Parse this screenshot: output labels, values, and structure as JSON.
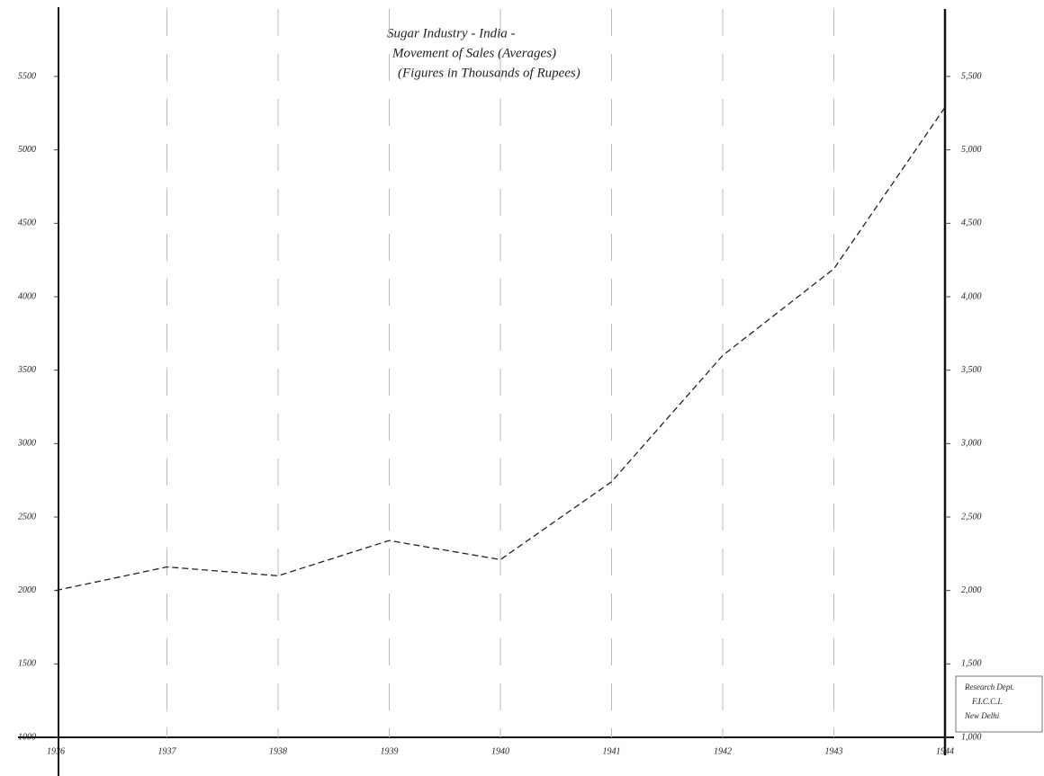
{
  "chart_data": {
    "type": "line",
    "title": [
      "Sugar Industry - India -",
      "Movement of Sales (Averages)",
      "(Figures in Thousands of Rupees)"
    ],
    "annotation": [
      "Research Dept.",
      "F.I.C.C.I.",
      "New Delhi"
    ],
    "categories": [
      "1936",
      "1937",
      "1938",
      "1939",
      "1940",
      "1941",
      "1942",
      "1943",
      "1944"
    ],
    "series": [
      {
        "name": "Sales",
        "color": "#222",
        "values": [
          2000,
          2160,
          2100,
          2340,
          2210,
          2740,
          3600,
          4190,
          5290
        ]
      }
    ],
    "ylim": [
      1000,
      5500
    ],
    "yticks": [
      1000,
      1500,
      2000,
      2500,
      3000,
      3500,
      4000,
      4500,
      5000,
      5500
    ],
    "y2lim": [
      1000,
      5500
    ],
    "y2ticks": [
      {
        "value": 1000,
        "label": "1,000"
      },
      {
        "value": 1500,
        "label": "1,500"
      },
      {
        "value": 2000,
        "label": "2,000"
      },
      {
        "value": 2500,
        "label": "2,500"
      },
      {
        "value": 3000,
        "label": "3,000"
      },
      {
        "value": 3500,
        "label": "3,500"
      },
      {
        "value": 4000,
        "label": "4,000"
      },
      {
        "value": 4500,
        "label": "4,500"
      },
      {
        "value": 5000,
        "label": "5,000"
      },
      {
        "value": 5500,
        "label": "5,500"
      }
    ],
    "dashed": true
  }
}
